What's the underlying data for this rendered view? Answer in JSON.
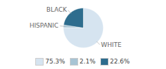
{
  "chart_data": {
    "type": "pie",
    "categories": [
      "WHITE",
      "HISPANIC",
      "BLACK"
    ],
    "values": [
      75.3,
      2.1,
      22.6
    ],
    "value_labels": [
      "75.3%",
      "2.1%",
      "22.6%"
    ],
    "colors": [
      "#d6e4f0",
      "#a8c4d4",
      "#2e6d8e"
    ],
    "legend": "bottom"
  }
}
